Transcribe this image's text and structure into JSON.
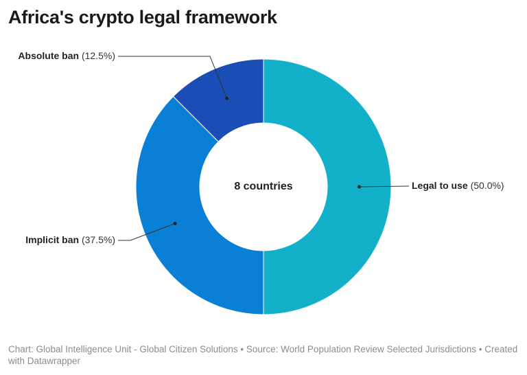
{
  "chart_data": {
    "type": "donut",
    "title": "Africa's crypto legal framework",
    "center_label": "8 countries",
    "categories": [
      "Legal to use",
      "Implicit ban",
      "Absolute ban"
    ],
    "values": [
      50.0,
      37.5,
      12.5
    ],
    "value_labels": [
      "(50.0%)",
      "(37.5%)",
      "(12.5%)"
    ],
    "colors": [
      "#13b1c9",
      "#0a7fd6",
      "#1a4db5"
    ],
    "source": "Chart: Global Intelligence Unit - Global Citizen Solutions  • Source: World Population Review Selected Jurisdictions • Created with Datawrapper"
  }
}
